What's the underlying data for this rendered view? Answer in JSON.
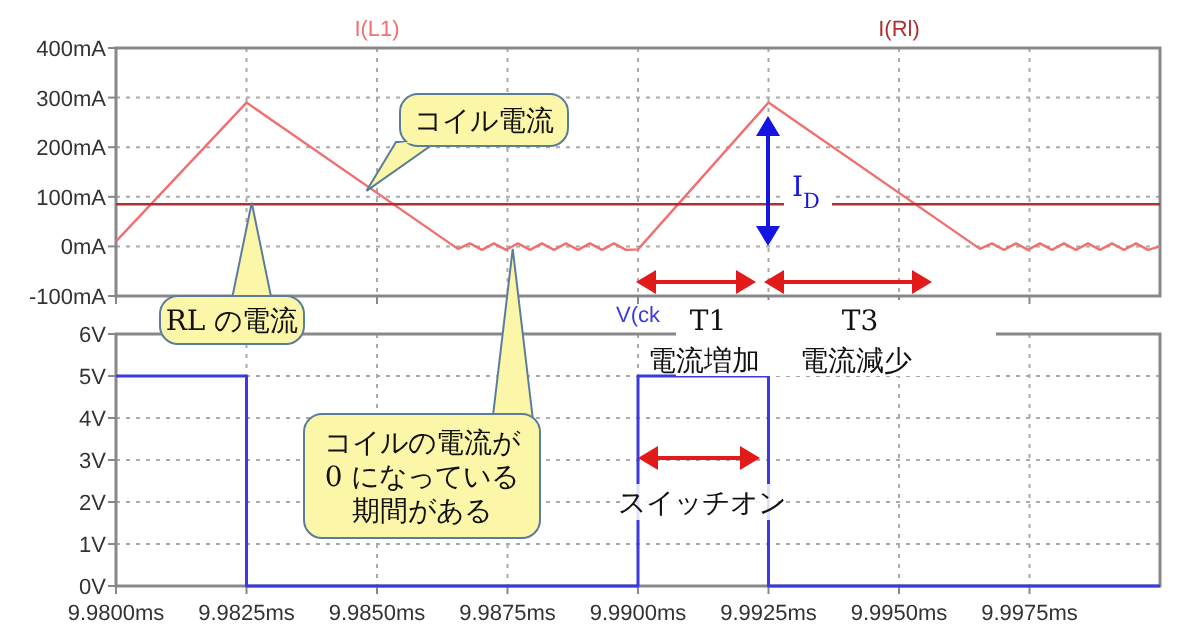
{
  "chart_data": [
    {
      "type": "line",
      "xlim": [
        9.98,
        10.0
      ],
      "ylim": [
        -100,
        400
      ],
      "xticks": [
        9.98,
        9.9825,
        9.985,
        9.9875,
        9.99,
        9.9925,
        9.995,
        9.9975
      ],
      "yticks": [
        {
          "value": -100,
          "label": "-100mA"
        },
        {
          "value": 0,
          "label": "0mA"
        },
        {
          "value": 100,
          "label": "100mA"
        },
        {
          "value": 200,
          "label": "200mA"
        },
        {
          "value": 300,
          "label": "300mA"
        },
        {
          "value": 400,
          "label": "400mA"
        }
      ],
      "tick_labels": "y",
      "grid": true,
      "legend": "top",
      "series": [
        {
          "name": "I(L1)",
          "color": "#f07070",
          "x": [
            9.98,
            9.9825,
            9.98655,
            9.98678,
            9.98701,
            9.98724,
            9.98747,
            9.9877,
            9.98793,
            9.98816,
            9.98839,
            9.98862,
            9.98885,
            9.98908,
            9.98931,
            9.98954,
            9.98977,
            9.99,
            9.9925,
            9.99655,
            9.99678,
            9.99701,
            9.99724,
            9.99747,
            9.9977,
            9.99793,
            9.99816,
            9.99839,
            9.99862,
            9.99885,
            9.99908,
            9.99931,
            9.99954,
            9.99977,
            10.0
          ],
          "values": [
            10,
            290,
            -5,
            6,
            -7,
            6,
            -7,
            6,
            -7,
            6,
            -7,
            6,
            -7,
            6,
            -7,
            6,
            -7,
            -6,
            290,
            -5,
            6,
            -7,
            6,
            -7,
            6,
            -7,
            6,
            -7,
            6,
            -7,
            6,
            -7,
            6,
            -7,
            0
          ]
        },
        {
          "name": "I(Rl)",
          "color": "#b03030",
          "x": [
            9.98,
            10.0
          ],
          "values": [
            85,
            85
          ]
        }
      ],
      "annotations": [
        {
          "text": "コイル電流",
          "x": 9.9848,
          "y": 112
        },
        {
          "text": "RL の電流",
          "x": 9.9826,
          "y": 88
        },
        {
          "text": "コイルの電流が0 になっている期間がある",
          "x": 9.9876,
          "y": -5
        },
        "I$_{D}$",
        "T1",
        "T3",
        "電流増加",
        "電流減少"
      ]
    },
    {
      "type": "step",
      "xlim": [
        9.98,
        10.0
      ],
      "ylim": [
        0,
        6
      ],
      "xticks": [
        {
          "value": 9.98,
          "label": "9.9800ms"
        },
        {
          "value": 9.9825,
          "label": "9.9825ms"
        },
        {
          "value": 9.985,
          "label": "9.9850ms"
        },
        {
          "value": 9.9875,
          "label": "9.9875ms"
        },
        {
          "value": 9.99,
          "label": "9.9900ms"
        },
        {
          "value": 9.9925,
          "label": "9.9925ms"
        },
        {
          "value": 9.995,
          "label": "9.9950ms"
        },
        {
          "value": 9.9975,
          "label": "9.9975ms"
        }
      ],
      "yticks": [
        {
          "value": 0,
          "label": "0V"
        },
        {
          "value": 1,
          "label": "1V"
        },
        {
          "value": 2,
          "label": "2V"
        },
        {
          "value": 3,
          "label": "3V"
        },
        {
          "value": 4,
          "label": "4V"
        },
        {
          "value": 5,
          "label": "5V"
        },
        {
          "value": 6,
          "label": "6V"
        }
      ],
      "grid": true,
      "legend": "top",
      "series": [
        {
          "name": "V(ck",
          "color": "#3a3ae0",
          "x": [
            9.98,
            9.9825,
            9.99,
            9.9925,
            10.0
          ],
          "values": [
            5,
            0,
            5,
            0,
            0
          ]
        }
      ],
      "annotations": [
        "スイッチオン"
      ]
    }
  ]
}
